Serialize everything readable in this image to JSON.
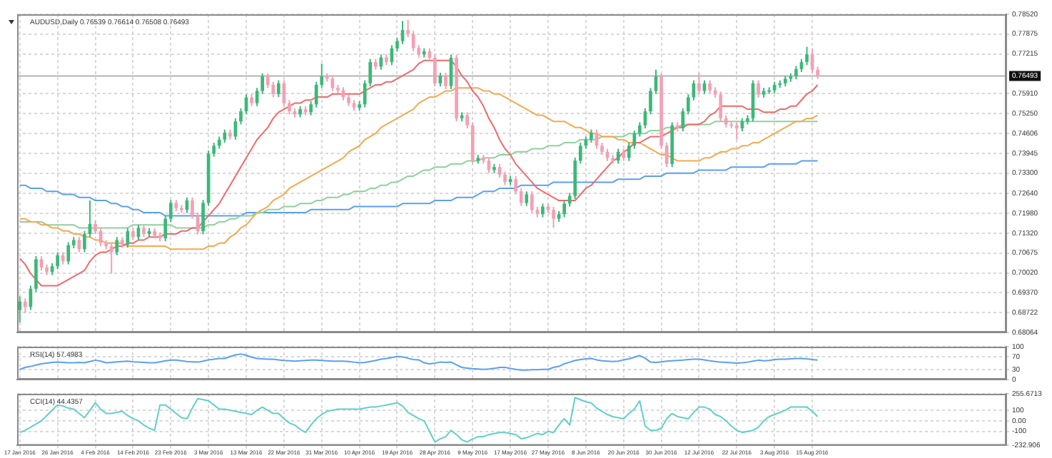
{
  "chart_data": [
    {
      "type": "candlestick",
      "title": "AUDUSD,Daily 0.76539 0.76614 0.76508 0.76493",
      "grid": true,
      "marker": "none",
      "tick_labels": "y",
      "categories": [
        null,
        null,
        null,
        null,
        null,
        null,
        null,
        null,
        null,
        null,
        null,
        null,
        null,
        null,
        null,
        null,
        null,
        null,
        null,
        null,
        null,
        null,
        null,
        null,
        null,
        null,
        null,
        null,
        null,
        null,
        null,
        null,
        null,
        null,
        null,
        null,
        null,
        null,
        null,
        null,
        null,
        null,
        null,
        null,
        null,
        null,
        null,
        null,
        null,
        null,
        null,
        null,
        null,
        null,
        null,
        null,
        null,
        null,
        null,
        null,
        null,
        null,
        null,
        null,
        null,
        null,
        null,
        null,
        null,
        null,
        null,
        null,
        null,
        null,
        null,
        null,
        null,
        null,
        null,
        null,
        null,
        null,
        null,
        null,
        null,
        null,
        null,
        null,
        null,
        null,
        null,
        null,
        null,
        null,
        null,
        null,
        null,
        null,
        null,
        null,
        null,
        null,
        null,
        null,
        null,
        null,
        null,
        null,
        null,
        null,
        null,
        null,
        null,
        null,
        null,
        null,
        null,
        null,
        null,
        null,
        null,
        null,
        null,
        null,
        null,
        null,
        null,
        null,
        null,
        null,
        null,
        null,
        null,
        null,
        null,
        null,
        null,
        null,
        null,
        null,
        null,
        null,
        null,
        null,
        null,
        null,
        null,
        null,
        null
      ],
      "ohlc": [
        [
          0.688,
          0.6925,
          0.6839,
          0.6908
        ],
        [
          0.6908,
          0.6918,
          0.687,
          0.689
        ],
        [
          0.689,
          0.696,
          0.688,
          0.695
        ],
        [
          0.695,
          0.7057,
          0.694,
          0.7047
        ],
        [
          0.7047,
          0.7057,
          0.701,
          0.702
        ],
        [
          0.702,
          0.703,
          0.6995,
          0.7005
        ],
        [
          0.7005,
          0.7034,
          0.6995,
          0.7024
        ],
        [
          0.7024,
          0.707,
          0.7014,
          0.706
        ],
        [
          0.706,
          0.707,
          0.703,
          0.704
        ],
        [
          0.704,
          0.7103,
          0.703,
          0.7093
        ],
        [
          0.7093,
          0.712,
          0.7083,
          0.711
        ],
        [
          0.711,
          0.712,
          0.707,
          0.708
        ],
        [
          0.708,
          0.714,
          0.707,
          0.713
        ],
        [
          0.713,
          0.724,
          0.712,
          0.7163
        ],
        [
          0.7163,
          0.7173,
          0.713,
          0.714
        ],
        [
          0.714,
          0.715,
          0.709,
          0.71
        ],
        [
          0.71,
          0.711,
          0.708,
          0.709
        ],
        [
          0.709,
          0.71,
          0.7,
          0.707
        ],
        [
          0.707,
          0.712,
          0.706,
          0.711
        ],
        [
          0.711,
          0.712,
          0.7085,
          0.7095
        ],
        [
          0.7095,
          0.7149,
          0.7085,
          0.7139
        ],
        [
          0.7139,
          0.7149,
          0.711,
          0.712
        ],
        [
          0.712,
          0.716,
          0.711,
          0.715
        ],
        [
          0.715,
          0.716,
          0.712,
          0.713
        ],
        [
          0.713,
          0.7149,
          0.712,
          0.7139
        ],
        [
          0.7139,
          0.7149,
          0.7115,
          0.7125
        ],
        [
          0.7125,
          0.7135,
          0.7106,
          0.7116
        ],
        [
          0.7116,
          0.719,
          0.7106,
          0.718
        ],
        [
          0.718,
          0.7242,
          0.717,
          0.7232
        ],
        [
          0.7232,
          0.7242,
          0.7205,
          0.7215
        ],
        [
          0.7215,
          0.7225,
          0.7199,
          0.7209
        ],
        [
          0.7209,
          0.725,
          0.7199,
          0.724
        ],
        [
          0.724,
          0.725,
          0.718,
          0.719
        ],
        [
          0.719,
          0.72,
          0.7129,
          0.7139
        ],
        [
          0.7139,
          0.7242,
          0.7129,
          0.7232
        ],
        [
          0.7232,
          0.7404,
          0.7222,
          0.7394
        ],
        [
          0.7394,
          0.743,
          0.7384,
          0.742
        ],
        [
          0.742,
          0.745,
          0.741,
          0.744
        ],
        [
          0.744,
          0.7473,
          0.743,
          0.7463
        ],
        [
          0.7463,
          0.7473,
          0.744,
          0.745
        ],
        [
          0.745,
          0.751,
          0.744,
          0.75
        ],
        [
          0.75,
          0.7543,
          0.749,
          0.7533
        ],
        [
          0.7533,
          0.7589,
          0.7523,
          0.7579
        ],
        [
          0.7579,
          0.7589,
          0.755,
          0.756
        ],
        [
          0.756,
          0.761,
          0.755,
          0.76
        ],
        [
          0.76,
          0.7658,
          0.759,
          0.7648
        ],
        [
          0.7648,
          0.7658,
          0.761,
          0.762
        ],
        [
          0.762,
          0.763,
          0.758,
          0.759
        ],
        [
          0.759,
          0.7635,
          0.758,
          0.7625
        ],
        [
          0.7625,
          0.7635,
          0.755,
          0.756
        ],
        [
          0.756,
          0.757,
          0.7523,
          0.7533
        ],
        [
          0.7533,
          0.7543,
          0.7513,
          0.7523
        ],
        [
          0.7523,
          0.755,
          0.7513,
          0.754
        ],
        [
          0.754,
          0.755,
          0.752,
          0.753
        ],
        [
          0.753,
          0.7566,
          0.752,
          0.7556
        ],
        [
          0.7556,
          0.763,
          0.7546,
          0.762
        ],
        [
          0.762,
          0.769,
          0.761,
          0.7648
        ],
        [
          0.7648,
          0.7658,
          0.763,
          0.764
        ],
        [
          0.764,
          0.765,
          0.76,
          0.761
        ],
        [
          0.761,
          0.762,
          0.7592,
          0.7602
        ],
        [
          0.7602,
          0.7612,
          0.7569,
          0.7579
        ],
        [
          0.7579,
          0.7589,
          0.755,
          0.756
        ],
        [
          0.756,
          0.757,
          0.7535,
          0.7545
        ],
        [
          0.7545,
          0.7566,
          0.7535,
          0.7556
        ],
        [
          0.7556,
          0.7635,
          0.7546,
          0.7625
        ],
        [
          0.7625,
          0.7705,
          0.7615,
          0.7695
        ],
        [
          0.7695,
          0.7705,
          0.767,
          0.768
        ],
        [
          0.768,
          0.772,
          0.767,
          0.771
        ],
        [
          0.771,
          0.772,
          0.7685,
          0.7695
        ],
        [
          0.7695,
          0.775,
          0.7685,
          0.774
        ],
        [
          0.774,
          0.7774,
          0.773,
          0.7764
        ],
        [
          0.7764,
          0.783,
          0.7754,
          0.78
        ],
        [
          0.78,
          0.7834,
          0.7777,
          0.7787
        ],
        [
          0.7787,
          0.7797,
          0.7731,
          0.7741
        ],
        [
          0.7741,
          0.7751,
          0.771,
          0.772
        ],
        [
          0.772,
          0.774,
          0.771,
          0.773
        ],
        [
          0.773,
          0.774,
          0.7699,
          0.7709
        ],
        [
          0.7709,
          0.7719,
          0.7615,
          0.7625
        ],
        [
          0.7625,
          0.766,
          0.7615,
          0.765
        ],
        [
          0.765,
          0.766,
          0.7606,
          0.7616
        ],
        [
          0.7616,
          0.7719,
          0.7606,
          0.7709
        ],
        [
          0.7709,
          0.7719,
          0.75,
          0.751
        ],
        [
          0.751,
          0.753,
          0.75,
          0.752
        ],
        [
          0.752,
          0.753,
          0.7477,
          0.7487
        ],
        [
          0.7487,
          0.7497,
          0.7361,
          0.7371
        ],
        [
          0.7371,
          0.739,
          0.7361,
          0.738
        ],
        [
          0.738,
          0.739,
          0.7361,
          0.7371
        ],
        [
          0.7371,
          0.7381,
          0.733,
          0.734
        ],
        [
          0.734,
          0.736,
          0.733,
          0.735
        ],
        [
          0.735,
          0.736,
          0.7315,
          0.7325
        ],
        [
          0.7325,
          0.7335,
          0.7291,
          0.7301
        ],
        [
          0.7301,
          0.732,
          0.7291,
          0.731
        ],
        [
          0.731,
          0.732,
          0.726,
          0.727
        ],
        [
          0.727,
          0.728,
          0.7222,
          0.7232
        ],
        [
          0.7232,
          0.727,
          0.7222,
          0.726
        ],
        [
          0.726,
          0.727,
          0.7199,
          0.7209
        ],
        [
          0.7209,
          0.7219,
          0.7185,
          0.7195
        ],
        [
          0.7195,
          0.723,
          0.7185,
          0.722
        ],
        [
          0.722,
          0.723,
          0.7199,
          0.7209
        ],
        [
          0.7209,
          0.7219,
          0.715,
          0.718
        ],
        [
          0.718,
          0.7205,
          0.717,
          0.7195
        ],
        [
          0.7195,
          0.724,
          0.7185,
          0.723
        ],
        [
          0.723,
          0.7265,
          0.722,
          0.7255
        ],
        [
          0.7255,
          0.7381,
          0.7245,
          0.7371
        ],
        [
          0.7371,
          0.743,
          0.7361,
          0.742
        ],
        [
          0.742,
          0.745,
          0.741,
          0.744
        ],
        [
          0.744,
          0.7473,
          0.743,
          0.7463
        ],
        [
          0.7463,
          0.7473,
          0.741,
          0.742
        ],
        [
          0.742,
          0.743,
          0.739,
          0.74
        ],
        [
          0.74,
          0.741,
          0.737,
          0.738
        ],
        [
          0.738,
          0.739,
          0.7361,
          0.7371
        ],
        [
          0.7371,
          0.741,
          0.7361,
          0.74
        ],
        [
          0.74,
          0.741,
          0.737,
          0.738
        ],
        [
          0.738,
          0.743,
          0.737,
          0.742
        ],
        [
          0.742,
          0.747,
          0.741,
          0.746
        ],
        [
          0.746,
          0.7497,
          0.745,
          0.7487
        ],
        [
          0.7487,
          0.7543,
          0.7477,
          0.7533
        ],
        [
          0.7533,
          0.761,
          0.7523,
          0.76
        ],
        [
          0.76,
          0.767,
          0.759,
          0.7648
        ],
        [
          0.7648,
          0.7658,
          0.741,
          0.742
        ],
        [
          0.742,
          0.743,
          0.735,
          0.736
        ],
        [
          0.736,
          0.7497,
          0.735,
          0.7487
        ],
        [
          0.7487,
          0.7497,
          0.7467,
          0.7477
        ],
        [
          0.7477,
          0.7543,
          0.7467,
          0.7533
        ],
        [
          0.7533,
          0.7589,
          0.7523,
          0.7579
        ],
        [
          0.7579,
          0.7635,
          0.7569,
          0.7625
        ],
        [
          0.7625,
          0.766,
          0.759,
          0.76
        ],
        [
          0.76,
          0.7635,
          0.759,
          0.7625
        ],
        [
          0.7625,
          0.7635,
          0.7592,
          0.7602
        ],
        [
          0.7602,
          0.7612,
          0.7578,
          0.7588
        ],
        [
          0.7588,
          0.7598,
          0.75,
          0.751
        ],
        [
          0.751,
          0.752,
          0.748,
          0.749
        ],
        [
          0.749,
          0.75,
          0.7477,
          0.7487
        ],
        [
          0.7487,
          0.7497,
          0.744,
          0.7477
        ],
        [
          0.7477,
          0.751,
          0.7467,
          0.75
        ],
        [
          0.75,
          0.752,
          0.749,
          0.751
        ],
        [
          0.751,
          0.7635,
          0.75,
          0.7625
        ],
        [
          0.7625,
          0.7635,
          0.7578,
          0.7588
        ],
        [
          0.7588,
          0.761,
          0.7578,
          0.76
        ],
        [
          0.76,
          0.7612,
          0.759,
          0.7602
        ],
        [
          0.7602,
          0.763,
          0.7592,
          0.762
        ],
        [
          0.762,
          0.7635,
          0.761,
          0.7625
        ],
        [
          0.7625,
          0.765,
          0.7615,
          0.764
        ],
        [
          0.764,
          0.7658,
          0.763,
          0.7648
        ],
        [
          0.7648,
          0.7682,
          0.7638,
          0.7672
        ],
        [
          0.7672,
          0.7705,
          0.7662,
          0.7695
        ],
        [
          0.7695,
          0.7745,
          0.7685,
          0.772
        ],
        [
          0.772,
          0.774,
          0.766,
          0.767
        ],
        [
          0.767,
          0.768,
          0.764,
          0.7649
        ]
      ],
      "series": [
        {
          "type": "line",
          "color": "#f06a6a",
          "values": [
            0.705,
            0.703,
            0.7,
            0.698,
            0.696,
            0.696,
            0.696,
            0.696,
            0.697,
            0.698,
            0.699,
            0.7,
            0.701,
            0.704,
            0.706,
            0.707,
            0.707,
            0.708,
            0.709,
            0.709,
            0.71,
            0.71,
            0.711,
            0.711,
            0.712,
            0.712,
            0.712,
            0.713,
            0.713,
            0.713,
            0.714,
            0.714,
            0.715,
            0.715,
            0.717,
            0.719,
            0.721,
            0.723,
            0.726,
            0.729,
            0.732,
            0.735,
            0.738,
            0.741,
            0.744,
            0.746,
            0.748,
            0.751,
            0.753,
            0.754,
            0.755,
            0.756,
            0.756,
            0.757,
            0.757,
            0.758,
            0.758,
            0.758,
            0.759,
            0.759,
            0.759,
            0.759,
            0.759,
            0.759,
            0.76,
            0.761,
            0.762,
            0.762,
            0.763,
            0.763,
            0.764,
            0.765,
            0.766,
            0.767,
            0.769,
            0.77,
            0.77,
            0.77,
            0.77,
            0.77,
            0.77,
            0.768,
            0.765,
            0.763,
            0.76,
            0.758,
            0.755,
            0.751,
            0.748,
            0.744,
            0.741,
            0.739,
            0.736,
            0.734,
            0.732,
            0.73,
            0.728,
            0.727,
            0.726,
            0.725,
            0.724,
            0.724,
            0.724,
            0.724,
            0.726,
            0.728,
            0.729,
            0.731,
            0.733,
            0.735,
            0.737,
            0.738,
            0.74,
            0.741,
            0.743,
            0.743,
            0.744,
            0.745,
            0.745,
            0.745,
            0.746,
            0.747,
            0.748,
            0.748,
            0.749,
            0.749,
            0.749,
            0.75,
            0.752,
            0.753,
            0.755,
            0.755,
            0.755,
            0.755,
            0.755,
            0.754,
            0.754,
            0.754,
            0.753,
            0.753,
            0.753,
            0.754,
            0.754,
            0.755,
            0.755,
            0.757,
            0.759,
            0.76,
            0.762
          ]
        },
        {
          "type": "line",
          "color": "#f5a94e",
          "values": [
            0.718,
            0.718,
            0.717,
            0.717,
            0.716,
            0.716,
            0.715,
            0.715,
            0.714,
            0.714,
            0.713,
            0.713,
            0.712,
            0.712,
            0.711,
            0.711,
            0.71,
            0.71,
            0.71,
            0.71,
            0.709,
            0.709,
            0.709,
            0.709,
            0.709,
            0.709,
            0.709,
            0.709,
            0.708,
            0.708,
            0.708,
            0.708,
            0.708,
            0.708,
            0.708,
            0.709,
            0.709,
            0.71,
            0.71,
            0.712,
            0.713,
            0.715,
            0.716,
            0.718,
            0.72,
            0.721,
            0.722,
            0.724,
            0.725,
            0.726,
            0.728,
            0.729,
            0.73,
            0.731,
            0.732,
            0.733,
            0.734,
            0.735,
            0.736,
            0.737,
            0.738,
            0.74,
            0.741,
            0.742,
            0.744,
            0.745,
            0.746,
            0.748,
            0.749,
            0.75,
            0.751,
            0.752,
            0.753,
            0.754,
            0.756,
            0.757,
            0.758,
            0.758,
            0.759,
            0.76,
            0.76,
            0.761,
            0.761,
            0.761,
            0.761,
            0.761,
            0.76,
            0.76,
            0.759,
            0.759,
            0.758,
            0.757,
            0.756,
            0.755,
            0.754,
            0.753,
            0.752,
            0.752,
            0.751,
            0.75,
            0.75,
            0.75,
            0.749,
            0.748,
            0.748,
            0.747,
            0.746,
            0.746,
            0.745,
            0.745,
            0.745,
            0.744,
            0.744,
            0.743,
            0.743,
            0.743,
            0.742,
            0.741,
            0.74,
            0.739,
            0.739,
            0.738,
            0.737,
            0.737,
            0.737,
            0.737,
            0.737,
            0.738,
            0.738,
            0.739,
            0.74,
            0.74,
            0.741,
            0.741,
            0.742,
            0.742,
            0.743,
            0.743,
            0.744,
            0.745,
            0.746,
            0.747,
            0.748,
            0.749,
            0.75,
            0.75,
            0.751,
            0.751,
            0.752
          ]
        },
        {
          "type": "line",
          "color": "#8fd19e",
          "values": [
            0.717,
            0.717,
            0.717,
            0.717,
            0.717,
            0.716,
            0.716,
            0.716,
            0.716,
            0.716,
            0.716,
            0.715,
            0.715,
            0.715,
            0.715,
            0.715,
            0.715,
            0.715,
            0.715,
            0.715,
            0.715,
            0.716,
            0.716,
            0.716,
            0.716,
            0.716,
            0.716,
            0.716,
            0.716,
            0.715,
            0.715,
            0.715,
            0.715,
            0.715,
            0.715,
            0.716,
            0.716,
            0.717,
            0.717,
            0.718,
            0.718,
            0.719,
            0.719,
            0.719,
            0.72,
            0.72,
            0.721,
            0.721,
            0.721,
            0.722,
            0.722,
            0.722,
            0.723,
            0.723,
            0.723,
            0.724,
            0.724,
            0.725,
            0.725,
            0.725,
            0.726,
            0.726,
            0.727,
            0.727,
            0.727,
            0.728,
            0.728,
            0.729,
            0.729,
            0.73,
            0.73,
            0.731,
            0.732,
            0.732,
            0.733,
            0.734,
            0.734,
            0.735,
            0.735,
            0.735,
            0.736,
            0.736,
            0.736,
            0.737,
            0.737,
            0.737,
            0.738,
            0.738,
            0.738,
            0.739,
            0.739,
            0.739,
            0.74,
            0.74,
            0.74,
            0.741,
            0.741,
            0.741,
            0.742,
            0.742,
            0.742,
            0.743,
            0.743,
            0.743,
            0.744,
            0.744,
            0.744,
            0.744,
            0.745,
            0.745,
            0.745,
            0.745,
            0.745,
            0.746,
            0.746,
            0.746,
            0.746,
            0.747,
            0.747,
            0.747,
            0.748,
            0.748,
            0.748,
            0.749,
            0.749,
            0.749,
            0.749,
            0.749,
            0.749,
            0.75,
            0.75,
            0.75,
            0.75,
            0.75,
            0.75,
            0.75,
            0.75,
            0.75,
            0.75,
            0.75,
            0.75,
            0.75,
            0.75,
            0.75,
            0.75,
            0.75,
            0.75,
            0.75,
            0.75
          ]
        },
        {
          "type": "line",
          "color": "#5aa0f0",
          "values": [
            0.729,
            0.729,
            0.728,
            0.728,
            0.728,
            0.727,
            0.727,
            0.727,
            0.726,
            0.726,
            0.726,
            0.725,
            0.725,
            0.725,
            0.724,
            0.724,
            0.724,
            0.723,
            0.723,
            0.722,
            0.722,
            0.721,
            0.721,
            0.72,
            0.72,
            0.72,
            0.72,
            0.719,
            0.719,
            0.719,
            0.719,
            0.719,
            0.719,
            0.719,
            0.719,
            0.719,
            0.719,
            0.719,
            0.719,
            0.719,
            0.719,
            0.719,
            0.72,
            0.72,
            0.72,
            0.72,
            0.72,
            0.72,
            0.72,
            0.72,
            0.72,
            0.72,
            0.72,
            0.72,
            0.721,
            0.721,
            0.721,
            0.721,
            0.721,
            0.721,
            0.721,
            0.721,
            0.722,
            0.722,
            0.722,
            0.722,
            0.722,
            0.722,
            0.722,
            0.722,
            0.722,
            0.723,
            0.723,
            0.723,
            0.723,
            0.723,
            0.723,
            0.724,
            0.724,
            0.724,
            0.724,
            0.725,
            0.725,
            0.725,
            0.725,
            0.726,
            0.727,
            0.727,
            0.727,
            0.728,
            0.728,
            0.728,
            0.728,
            0.729,
            0.729,
            0.729,
            0.729,
            0.729,
            0.729,
            0.73,
            0.73,
            0.73,
            0.73,
            0.73,
            0.73,
            0.73,
            0.73,
            0.73,
            0.73,
            0.73,
            0.73,
            0.731,
            0.731,
            0.731,
            0.731,
            0.731,
            0.732,
            0.732,
            0.732,
            0.732,
            0.733,
            0.733,
            0.733,
            0.733,
            0.733,
            0.733,
            0.734,
            0.734,
            0.734,
            0.734,
            0.734,
            0.734,
            0.735,
            0.735,
            0.735,
            0.735,
            0.735,
            0.735,
            0.735,
            0.736,
            0.736,
            0.736,
            0.736,
            0.736,
            0.736,
            0.737,
            0.737,
            0.737,
            0.737
          ]
        }
      ],
      "ylim": [
        0.68064,
        0.7852
      ],
      "yticks": [
        {
          "value": 0.68064,
          "label": "0.68064"
        },
        {
          "value": 0.68722,
          "label": "0.68722"
        },
        {
          "value": 0.6937,
          "label": "0.69370"
        },
        {
          "value": 0.7002,
          "label": "0.70020"
        },
        {
          "value": 0.70675,
          "label": "0.70675"
        },
        {
          "value": 0.7132,
          "label": "0.71320"
        },
        {
          "value": 0.7198,
          "label": "0.71980"
        },
        {
          "value": 0.7264,
          "label": "0.72640"
        },
        {
          "value": 0.733,
          "label": "0.73300"
        },
        {
          "value": 0.73945,
          "label": "0.73945"
        },
        {
          "value": 0.74606,
          "label": "0.74606"
        },
        {
          "value": 0.7525,
          "label": "0.75250"
        },
        {
          "value": 0.7591,
          "label": "0.75910"
        },
        {
          "value": 0.77215,
          "label": "0.77215"
        },
        {
          "value": 0.77875,
          "label": "0.77875"
        },
        {
          "value": 0.7852,
          "label": "0.78520"
        }
      ],
      "ref_lines": [
        {
          "axis": "y",
          "value": 0.76493,
          "label": "0.76493",
          "color": "#b4b4b4"
        }
      ]
    },
    {
      "type": "line",
      "title": "RSI(14) 57.4983",
      "grid": true,
      "marker": "none",
      "tick_labels": "y",
      "categories": [
        null,
        null,
        null,
        null,
        null,
        null,
        null,
        null,
        null,
        null,
        null,
        null,
        null,
        null,
        null,
        null,
        null,
        null,
        null,
        null,
        null,
        null,
        null,
        null,
        null,
        null,
        null,
        null,
        null,
        null,
        null,
        null,
        null,
        null,
        null,
        null,
        null,
        null,
        null,
        null,
        null,
        null,
        null,
        null,
        null,
        null,
        null,
        null,
        null,
        null,
        null,
        null,
        null,
        null,
        null,
        null,
        null,
        null,
        null,
        null,
        null,
        null,
        null,
        null,
        null,
        null,
        null,
        null,
        null,
        null,
        null,
        null,
        null,
        null,
        null,
        null,
        null,
        null,
        null,
        null,
        null,
        null,
        null,
        null,
        null,
        null,
        null,
        null,
        null,
        null,
        null,
        null,
        null,
        null,
        null,
        null,
        null,
        null,
        null,
        null,
        null,
        null,
        null,
        null,
        null,
        null,
        null,
        null,
        null,
        null,
        null,
        null,
        null,
        null,
        null,
        null,
        null,
        null,
        null,
        null,
        null,
        null,
        null,
        null,
        null,
        null,
        null,
        null,
        null,
        null,
        null,
        null,
        null,
        null,
        null,
        null,
        null,
        null,
        null,
        null,
        null,
        null,
        null,
        null,
        null,
        null,
        null,
        null,
        null
      ],
      "series": [
        {
          "color": "#5aa0f0",
          "values": [
            31,
            37,
            40,
            44,
            48,
            50,
            52,
            53,
            52,
            51,
            51,
            52,
            51,
            55,
            59,
            56,
            51,
            52,
            54,
            55,
            56,
            54,
            53,
            52,
            51,
            51,
            54,
            57,
            59,
            59,
            57,
            55,
            54,
            53,
            56,
            60,
            62,
            64,
            64,
            70,
            75,
            78,
            74,
            68,
            64,
            63,
            62,
            62,
            60,
            58,
            57,
            56,
            57,
            58,
            59,
            59,
            58,
            57,
            56,
            56,
            56,
            55,
            53,
            51,
            52,
            55,
            58,
            62,
            64,
            67,
            70,
            69,
            65,
            61,
            60,
            51,
            48,
            50,
            53,
            52,
            53,
            45,
            37,
            35,
            33,
            32,
            31,
            32,
            34,
            37,
            37,
            34,
            31,
            29,
            29,
            30,
            30,
            31,
            31,
            37,
            40,
            48,
            53,
            58,
            61,
            63,
            64,
            60,
            57,
            56,
            55,
            56,
            60,
            63,
            68,
            73,
            65,
            53,
            52,
            54,
            56,
            57,
            58,
            59,
            61,
            62,
            62,
            60,
            57,
            55,
            53,
            52,
            51,
            50,
            51,
            53,
            56,
            59,
            57,
            58,
            61,
            62,
            62,
            63,
            64,
            64,
            63,
            61,
            59
          ]
        }
      ],
      "ylim": [
        0,
        100
      ],
      "yticks": [
        0,
        30,
        70,
        100
      ]
    },
    {
      "type": "line",
      "title": "CCI(14) 44.4357",
      "grid": true,
      "marker": "none",
      "categories": [
        "17 Jan 2016",
        null,
        null,
        null,
        null,
        null,
        null,
        "26 Jan 2016",
        null,
        null,
        null,
        null,
        null,
        null,
        "4 Feb 2016",
        null,
        null,
        null,
        null,
        null,
        null,
        "14 Feb 2016",
        null,
        null,
        null,
        null,
        null,
        null,
        "23 Feb 2016",
        null,
        null,
        null,
        null,
        null,
        null,
        "3 Mar 2016",
        null,
        null,
        null,
        null,
        null,
        null,
        "13 Mar 2016",
        null,
        null,
        null,
        null,
        null,
        null,
        "22 Mar 2016",
        null,
        null,
        null,
        null,
        null,
        null,
        "31 Mar 2016",
        null,
        null,
        null,
        null,
        null,
        null,
        "10 Apr 2016",
        null,
        null,
        null,
        null,
        null,
        null,
        "19 Apr 2016",
        null,
        null,
        null,
        null,
        null,
        null,
        "28 Apr 2016",
        null,
        null,
        null,
        null,
        null,
        null,
        "9 May 2016",
        null,
        null,
        null,
        null,
        null,
        null,
        "17 May 2016",
        null,
        null,
        null,
        null,
        null,
        null,
        "27 May 2016",
        null,
        null,
        null,
        null,
        null,
        null,
        "8 Jun 2016",
        null,
        null,
        null,
        null,
        null,
        null,
        "20 Jun 2016",
        null,
        null,
        null,
        null,
        null,
        null,
        "30 Jun 2016",
        null,
        null,
        null,
        null,
        null,
        null,
        "12 Jul 2016",
        null,
        null,
        null,
        null,
        null,
        null,
        "22 Jul 2016",
        null,
        null,
        null,
        null,
        null,
        null,
        "3 Aug 2016",
        null,
        null,
        null,
        null,
        null,
        null,
        "15 Aug 2016",
        null
      ],
      "series": [
        {
          "color": "#5fd0c8",
          "values": [
            -110,
            -90,
            -60,
            -30,
            0,
            50,
            100,
            150,
            140,
            120,
            110,
            70,
            30,
            100,
            170,
            110,
            70,
            70,
            80,
            90,
            50,
            20,
            0,
            -40,
            -70,
            -90,
            150,
            150,
            110,
            70,
            30,
            20,
            120,
            210,
            200,
            190,
            150,
            110,
            110,
            100,
            90,
            80,
            70,
            60,
            100,
            130,
            100,
            70,
            70,
            20,
            -20,
            -40,
            -80,
            -110,
            -40,
            20,
            60,
            90,
            100,
            110,
            110,
            110,
            110,
            110,
            120,
            130,
            130,
            140,
            150,
            160,
            170,
            140,
            80,
            50,
            20,
            0,
            -100,
            -200,
            -170,
            -150,
            -90,
            -130,
            -180,
            -200,
            -170,
            -150,
            -150,
            -130,
            -120,
            -110,
            -110,
            -120,
            -130,
            -170,
            -160,
            -140,
            -120,
            -130,
            -100,
            -110,
            -40,
            20,
            -40,
            220,
            200,
            180,
            170,
            120,
            90,
            60,
            40,
            30,
            20,
            70,
            110,
            190,
            -50,
            -90,
            -90,
            -70,
            20,
            70,
            40,
            30,
            20,
            80,
            130,
            130,
            110,
            60,
            40,
            0,
            -50,
            -90,
            -110,
            -100,
            -90,
            -60,
            0,
            40,
            60,
            80,
            100,
            130,
            130,
            130,
            130,
            90,
            40
          ]
        }
      ],
      "ylim": [
        -232.906,
        255.6713
      ],
      "yticks": [
        {
          "value": -232.906,
          "label": "-232.906"
        },
        -100,
        {
          "value": 0,
          "label": "0.00"
        },
        100,
        {
          "value": 255.6713,
          "label": "255.6713"
        }
      ]
    }
  ]
}
